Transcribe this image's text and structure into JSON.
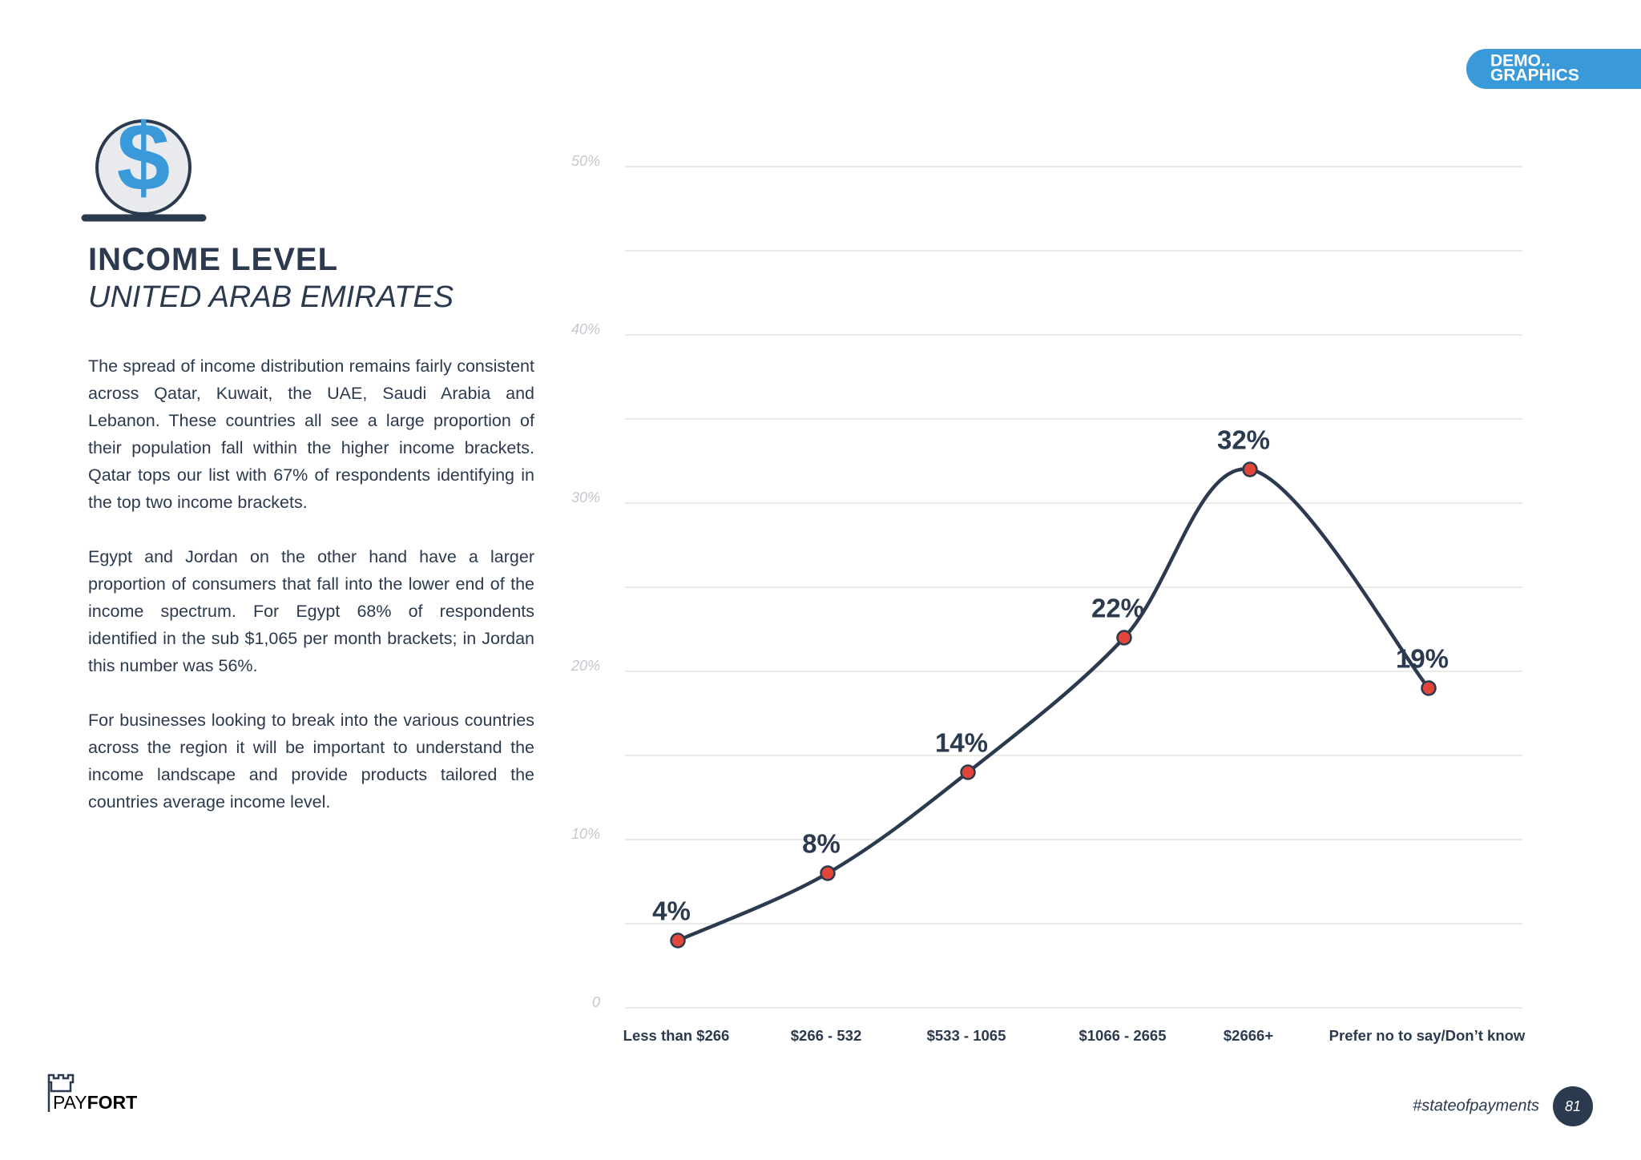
{
  "header": {
    "tag_line1": "DEMO..",
    "tag_line2": "GRAPHICS"
  },
  "title": "INCOME LEVEL",
  "subtitle": "UNITED ARAB EMIRATES",
  "paragraphs": [
    "The spread of income distribution remains fairly consistent across Qatar, Kuwait, the UAE, Saudi Arabia and Lebanon. These countries all see a large proportion of their population fall within the higher income brackets. Qatar tops our list with 67% of respondents identifying in the top two income brackets.",
    "Egypt and Jordan on the other hand have a larger proportion of consumers that fall into the lower end of the income spectrum. For Egypt 68% of respondents identified in the sub $1,065 per month brackets; in Jordan this number was 56%.",
    "For businesses looking to break into the various countries across the region it will be important to understand the income landscape and provide products tailored the countries average income level."
  ],
  "chart_data": {
    "type": "line",
    "categories": [
      "Less than $266",
      "$266 - 532",
      "$533 - 1065",
      "$1066 - 2665",
      "$2666+",
      "Prefer no to say/Don’t know"
    ],
    "values": [
      4,
      8,
      14,
      22,
      32,
      19
    ],
    "value_labels": [
      "4%",
      "8%",
      "14%",
      "22%",
      "32%",
      "19%"
    ],
    "color": "#2b3a4e",
    "marker_color": "#e2463a",
    "ylim": [
      0,
      50
    ],
    "yticks": [
      0,
      {
        "value": 10,
        "label": "10%"
      },
      {
        "value": 20,
        "label": "20%"
      },
      {
        "value": 30,
        "label": "30%"
      },
      {
        "value": 40,
        "label": "40%"
      },
      {
        "value": 50,
        "label": "50%"
      }
    ],
    "minor_yticks": [
      5,
      15,
      25,
      35,
      45
    ],
    "grid": true,
    "smooth": true
  },
  "footer": {
    "logo_a": "PAY",
    "logo_b": "FORT",
    "hashtag": "#stateofpayments",
    "page": "81"
  }
}
